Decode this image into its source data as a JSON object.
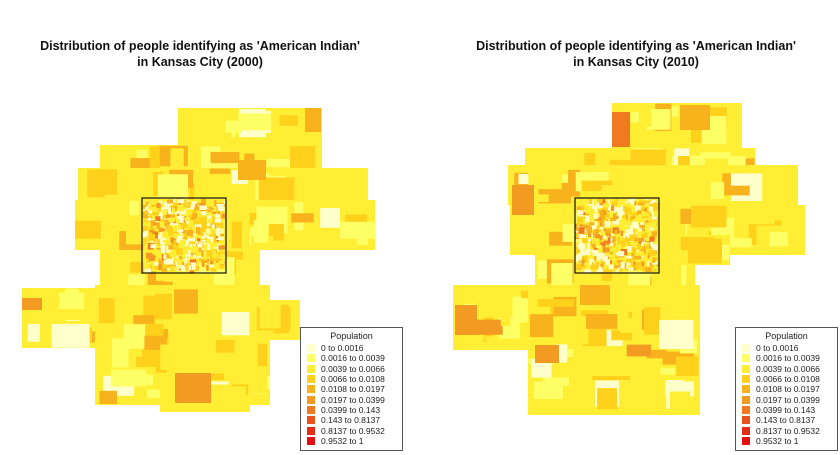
{
  "maps": [
    {
      "title_line1": "Distribution of people identifying as 'American Indian'",
      "title_line2": "in Kansas City (2000)",
      "year": "2000"
    },
    {
      "title_line1": "Distribution of people identifying as 'American Indian'",
      "title_line2": "in Kansas City (2010)",
      "year": "2010"
    }
  ],
  "legend": {
    "title": "Population",
    "classes": [
      {
        "label": "0 to 0.0016",
        "color": "#ffffcc"
      },
      {
        "label": "0.0016 to 0.0039",
        "color": "#ffff66"
      },
      {
        "label": "0.0039 to 0.0066",
        "color": "#ffee33"
      },
      {
        "label": "0.0066 to 0.0108",
        "color": "#ffd11a"
      },
      {
        "label": "0.0108 to 0.0197",
        "color": "#f8b21c"
      },
      {
        "label": "0.0197 to 0.0399",
        "color": "#f29a22"
      },
      {
        "label": "0.0399 to 0.143",
        "color": "#ef7a1f"
      },
      {
        "label": "0.143 to 0.8137",
        "color": "#e9521c"
      },
      {
        "label": "0.8137 to 0.9532",
        "color": "#e52c18"
      },
      {
        "label": "0.9532 to 1",
        "color": "#e50e12"
      }
    ]
  },
  "colors": {
    "base": "#ffee33",
    "inset_frame": "#111111"
  }
}
